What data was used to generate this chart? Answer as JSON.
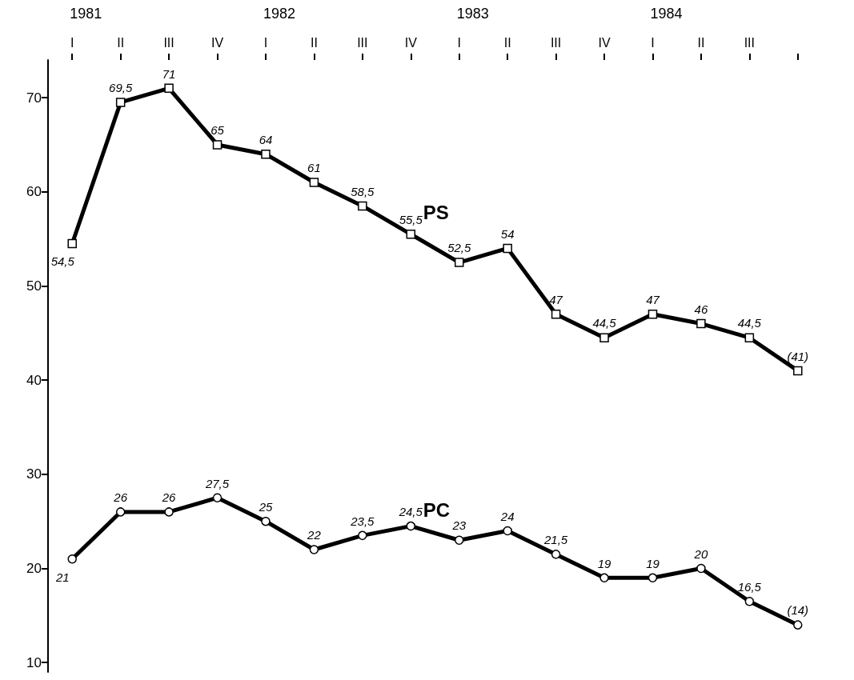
{
  "chart_data": {
    "type": "line",
    "categories": [
      "I",
      "II",
      "III",
      "IV",
      "I",
      "II",
      "III",
      "IV",
      "I",
      "II",
      "III",
      "IV",
      "I",
      "II",
      "III",
      null
    ],
    "annotations": [
      "1981",
      "1982",
      "1983",
      "1984"
    ],
    "ylim": [
      9,
      74
    ],
    "yticks": [
      10,
      20,
      30,
      40,
      50,
      60,
      70
    ],
    "grid": false,
    "legend": false,
    "line_style": "solid",
    "series": [
      {
        "name": "PS",
        "color": "#000000",
        "marker": "square",
        "values": [
          54.5,
          69.5,
          71,
          65,
          64,
          61,
          58.5,
          55.5,
          52.5,
          54,
          47,
          44.5,
          47,
          46,
          44.5,
          41
        ],
        "value_labels": [
          "54,5",
          "69,5",
          "71",
          "65",
          "64",
          "61",
          "58,5",
          "55,5",
          "52,5",
          "54",
          "47",
          "44,5",
          "47",
          "46",
          "44,5",
          "(41)"
        ]
      },
      {
        "name": "PC",
        "color": "#000000",
        "marker": "circle",
        "values": [
          21,
          26,
          26,
          27.5,
          25,
          22,
          23.5,
          24.5,
          23,
          24,
          21.5,
          19,
          19,
          20,
          16.5,
          14
        ],
        "value_labels": [
          "21",
          "26",
          "26",
          "27,5",
          "25",
          "22",
          "23,5",
          "24,5",
          "23",
          "24",
          "21,5",
          "19",
          "19",
          "20",
          "16,5",
          "(14)"
        ]
      }
    ]
  }
}
